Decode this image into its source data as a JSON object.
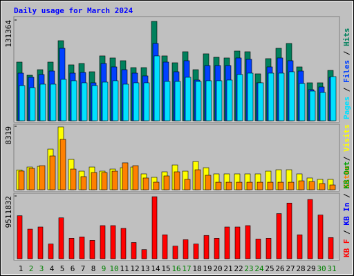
{
  "chart_data": [
    {
      "type": "bar",
      "title": "Daily usage for March 2024",
      "ylim": [
        0,
        131364
      ],
      "yticks": [
        131364
      ],
      "legend_separator": " / ",
      "series": [
        {
          "name": "Hits",
          "color": "#00805c",
          "values": [
            76500,
            59400,
            66600,
            76500,
            104400,
            72900,
            74700,
            63900,
            84600,
            81900,
            78300,
            69300,
            69300,
            129600,
            84600,
            75600,
            90000,
            66600,
            87300,
            82800,
            81900,
            90900,
            90000,
            61200,
            81000,
            94500,
            100800,
            70200,
            49500,
            49500,
            65700
          ]
        },
        {
          "name": "Files",
          "color": "#0040ff",
          "values": [
            62100,
            56700,
            60300,
            64800,
            94500,
            62100,
            63000,
            49500,
            74700,
            70200,
            66600,
            62100,
            58500,
            100800,
            76500,
            63900,
            78300,
            53100,
            72000,
            72000,
            72000,
            81900,
            80100,
            49500,
            70200,
            81900,
            78300,
            64800,
            40500,
            44100,
            56700
          ]
        },
        {
          "name": "Pages",
          "color": "#00e0ff",
          "values": [
            45900,
            43200,
            47700,
            47700,
            54000,
            52200,
            49500,
            45900,
            50400,
            52200,
            47700,
            49500,
            49500,
            84600,
            51300,
            51300,
            56700,
            51300,
            52200,
            52200,
            53100,
            60300,
            62100,
            49500,
            62100,
            62100,
            63900,
            48600,
            38700,
            36900,
            57600
          ]
        }
      ]
    },
    {
      "type": "bar",
      "ylim": [
        0,
        8319
      ],
      "yticks": [
        8319
      ],
      "legend_separator": " / ",
      "series": [
        {
          "name": "Visits",
          "color": "#ffff00",
          "values": [
            2600,
            2980,
            3070,
            5330,
            8230,
            3980,
            2440,
            2980,
            2440,
            2710,
            2890,
            2980,
            2080,
            1630,
            2350,
            3250,
            2440,
            3700,
            2890,
            2080,
            2080,
            2080,
            2080,
            2080,
            2440,
            2620,
            2620,
            2080,
            1540,
            1360,
            1360
          ]
        },
        {
          "name": "Sites",
          "color": "#ff8000",
          "values": [
            2450,
            2800,
            3160,
            4430,
            6600,
            2710,
            1720,
            2260,
            2260,
            2440,
            3530,
            3160,
            1540,
            995,
            1810,
            2350,
            1360,
            2620,
            1900,
            990,
            990,
            990,
            990,
            990,
            990,
            990,
            990,
            1170,
            1080,
            810,
            630
          ]
        }
      ]
    },
    {
      "type": "bar",
      "ylim": [
        0,
        9511832
      ],
      "yticks": [
        9511832
      ],
      "legend_separator": " / ",
      "categories": [
        "1",
        "2",
        "3",
        "4",
        "5",
        "6",
        "7",
        "8",
        "9",
        "10",
        "11",
        "12",
        "13",
        "14",
        "15",
        "16",
        "17",
        "18",
        "19",
        "20",
        "21",
        "22",
        "23",
        "24",
        "25",
        "26",
        "27",
        "28",
        "29",
        "30",
        "31"
      ],
      "label_colors": [
        "#000000",
        "#008000",
        "#008000",
        "#000000",
        "#000000",
        "#000000",
        "#000000",
        "#000000",
        "#008000",
        "#008000",
        "#000000",
        "#000000",
        "#000000",
        "#000000",
        "#000000",
        "#008000",
        "#008000",
        "#000000",
        "#000000",
        "#000000",
        "#000000",
        "#000000",
        "#008000",
        "#008000",
        "#000000",
        "#000000",
        "#000000",
        "#000000",
        "#000000",
        "#008000",
        "#008000"
      ],
      "series": [
        {
          "name": "KB F",
          "color": "#ff0000",
          "values": [
            6520000,
            4490000,
            4810000,
            2240000,
            6200000,
            3100000,
            3310000,
            2780000,
            5020000,
            5020000,
            4600000,
            2460000,
            1390000,
            9400000,
            3630000,
            1920000,
            2890000,
            2240000,
            3530000,
            3100000,
            4810000,
            4810000,
            5020000,
            2990000,
            3100000,
            6840000,
            8440000,
            3630000,
            8980000,
            6630000,
            3210000
          ]
        }
      ],
      "legend_entries": [
        {
          "name": "KB In",
          "color": "#0000ff"
        },
        {
          "name": "KB Out",
          "color": "#00a000"
        }
      ]
    }
  ]
}
